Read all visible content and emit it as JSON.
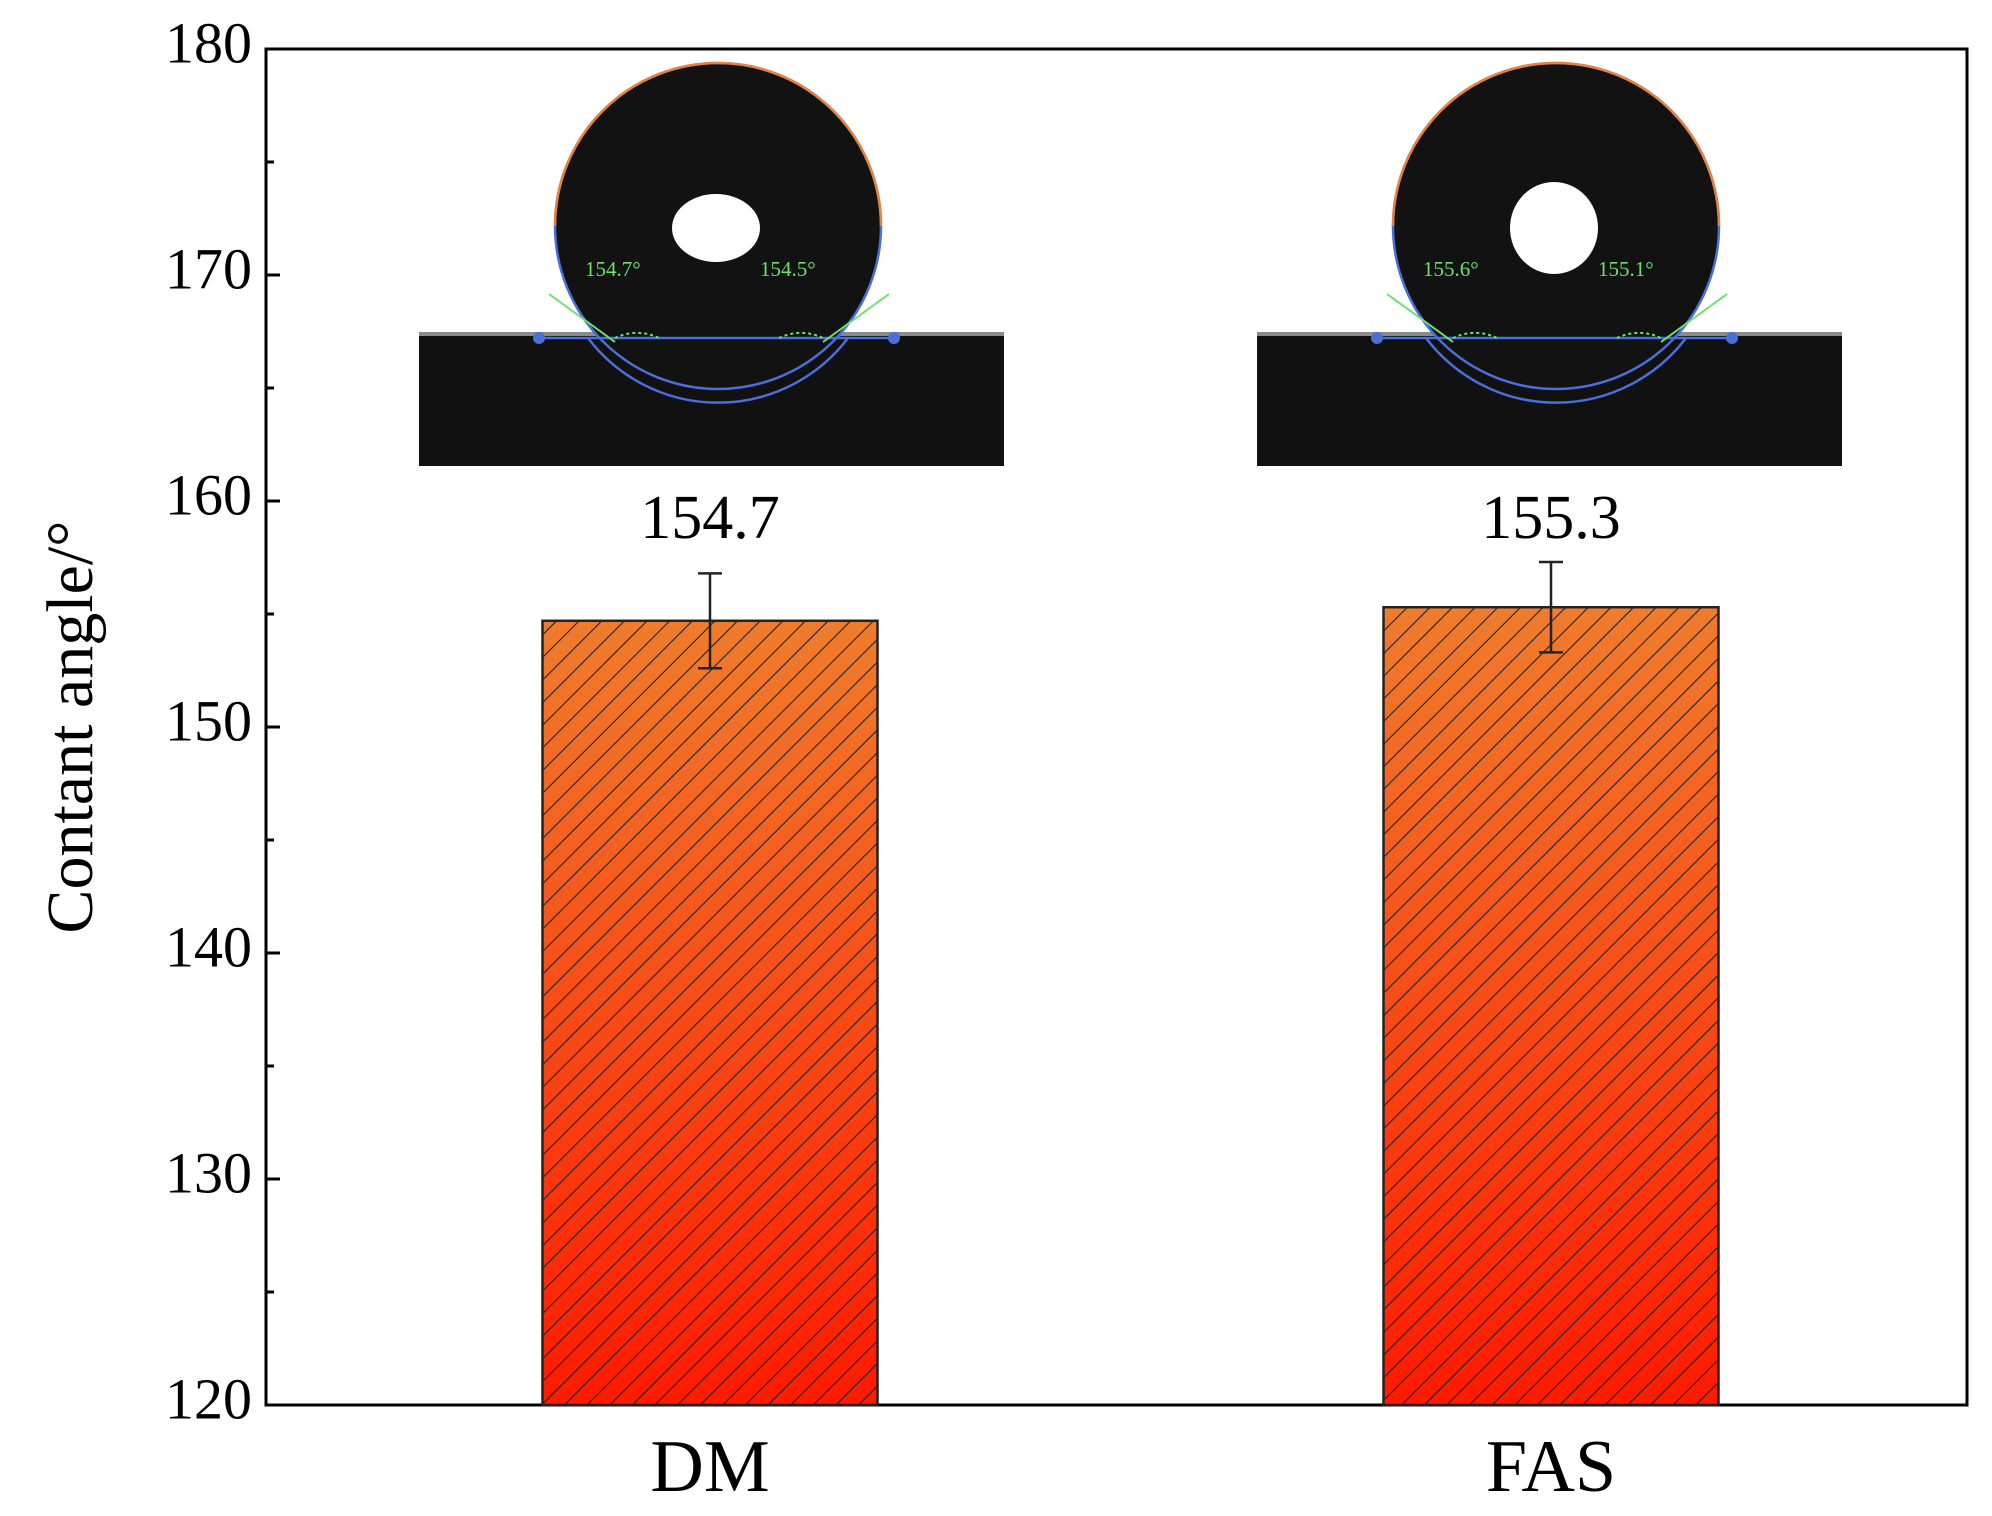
{
  "chart_data": {
    "type": "bar",
    "y_label": "Contant angle/°",
    "categories": [
      "DM",
      "FAS"
    ],
    "values": [
      154.7,
      155.3
    ],
    "errors": [
      2.1,
      2.0
    ],
    "color": "#f07c2c",
    "color_bottom": "#ff1a00",
    "hatch": true,
    "ylim": [
      120,
      180
    ],
    "yticks": [
      120,
      130,
      140,
      150,
      160,
      170,
      180
    ],
    "annotations": [
      {
        "angles": [
          "154.7°",
          "154.5°"
        ]
      },
      {
        "angles": [
          "155.6°",
          "155.1°"
        ]
      }
    ]
  }
}
